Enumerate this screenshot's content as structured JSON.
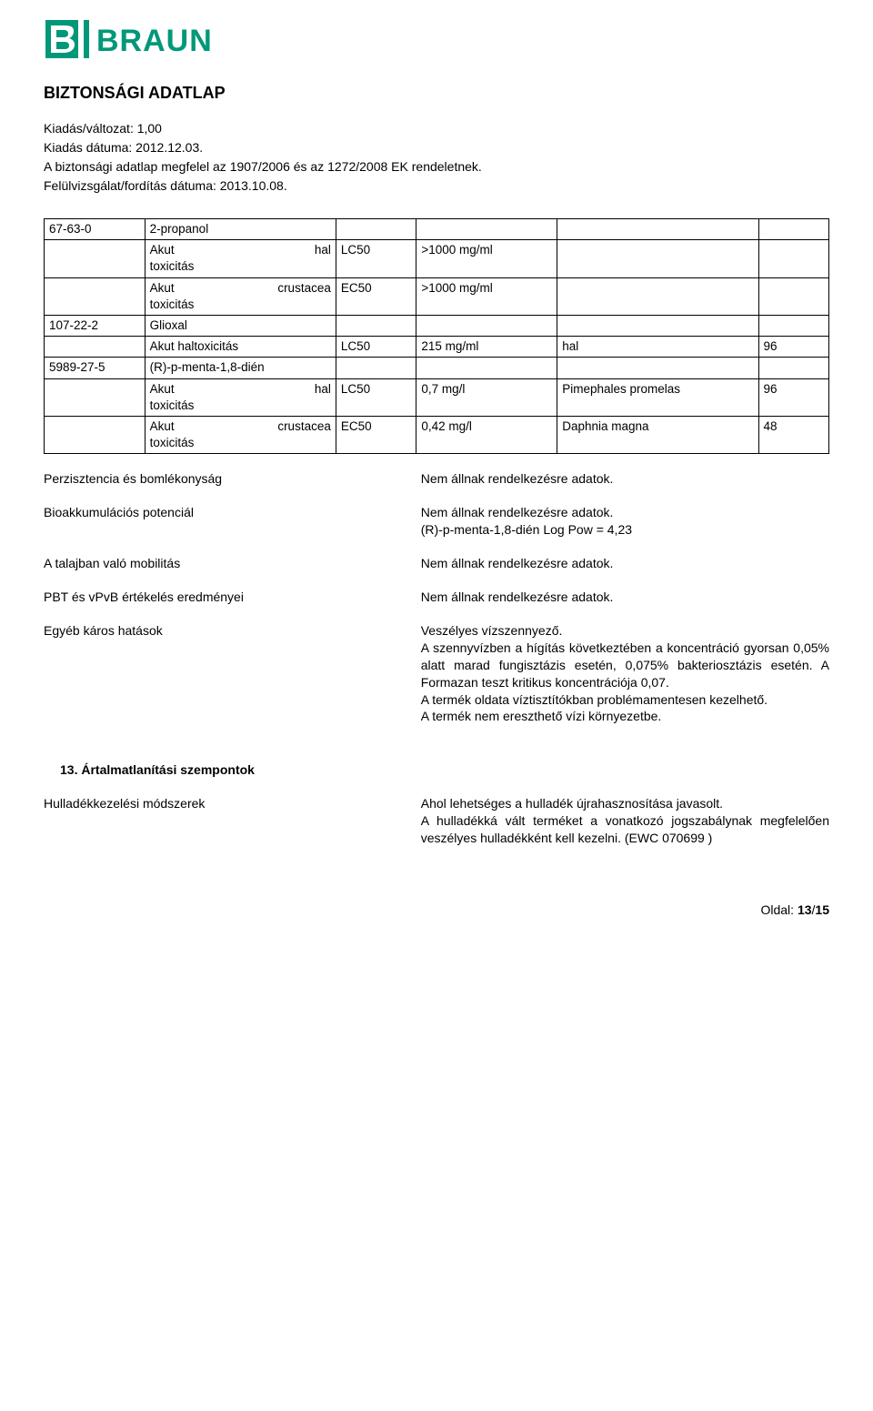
{
  "logo": {
    "b": "B",
    "braun": "BRAUN",
    "color": "#009879"
  },
  "page_title": "BIZTONSÁGI ADATLAP",
  "meta": {
    "line1": "Kiadás/változat: 1,00",
    "line2": "Kiadás dátuma: 2012.12.03.",
    "line3": "A biztonsági adatlap megfelel az 1907/2006 és az 1272/2008 EK rendeletnek.",
    "line4": "Felülvizsgálat/fordítás dátuma: 2013.10.08."
  },
  "table": {
    "rows": [
      [
        "67-63-0",
        "2-propanol",
        "",
        "",
        "",
        ""
      ],
      [
        "",
        "Akut hal toxicitás",
        "LC50",
        ">1000 mg/ml",
        "",
        ""
      ],
      [
        "",
        "Akut crustacea toxicitás",
        "EC50",
        ">1000 mg/ml",
        "",
        ""
      ],
      [
        "107-22-2",
        "Glioxal",
        "",
        "",
        "",
        ""
      ],
      [
        "",
        "Akut haltoxicitás",
        "LC50",
        "215 mg/ml",
        "hal",
        "96"
      ],
      [
        "5989-27-5",
        "(R)-p-menta-1,8-dién",
        "",
        "",
        "",
        ""
      ],
      [
        "",
        "Akut hal toxicitás",
        "LC50",
        "0,7 mg/l",
        "Pimephales promelas",
        "96"
      ],
      [
        "",
        "Akut crustacea toxicitás",
        "EC50",
        "0,42 mg/l",
        "Daphnia magna",
        "48"
      ]
    ],
    "justify_rows": [
      1,
      2,
      6,
      7
    ]
  },
  "info": [
    {
      "label": "Perzisztencia és bomlékonyság",
      "value": "Nem állnak rendelkezésre adatok."
    },
    {
      "label": "Bioakkumulációs potenciál",
      "value": "Nem állnak rendelkezésre adatok.\n(R)-p-menta-1,8-dién Log Pow = 4,23"
    },
    {
      "label": "A talajban való mobilitás",
      "value": "Nem állnak rendelkezésre adatok."
    },
    {
      "label": "PBT és vPvB értékelés eredményei",
      "value": "Nem állnak rendelkezésre adatok."
    },
    {
      "label": "Egyéb káros hatások",
      "value": "Veszélyes vízszennyező.\nA szennyvízben a hígítás következtében a koncentráció gyorsan 0,05% alatt marad fungisztázis esetén, 0,075% bakteriosztázis esetén. A Formazan teszt kritikus koncentrációja 0,07.\nA termék oldata víztisztítókban problémamentesen kezelhető.\nA termék nem ereszthető vízi környezetbe."
    }
  ],
  "section13": {
    "title": "13. Ártalmatlanítási szempontok",
    "label": "Hulladékkezelési módszerek",
    "value": "Ahol lehetséges a hulladék újrahasznosítása javasolt.\nA hulladékká vált terméket a vonatkozó jogszabálynak megfelelően veszélyes hulladékként kell kezelni. (EWC 070699 )"
  },
  "footer": {
    "label": "Oldal:",
    "page": "13",
    "sep": " / ",
    "total": "15"
  }
}
